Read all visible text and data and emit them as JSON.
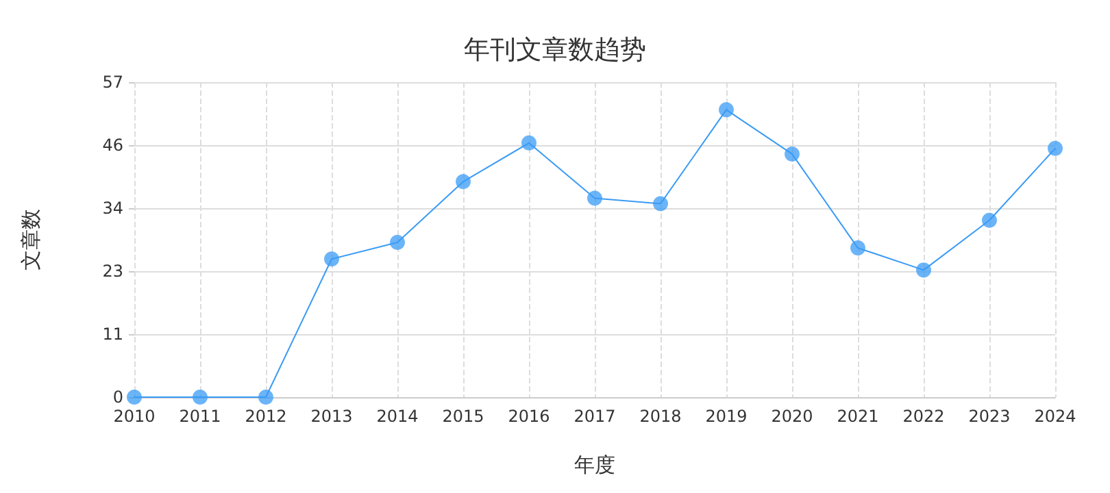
{
  "chart_data": {
    "type": "line",
    "title": "年刊文章数趋势",
    "xlabel": "年度",
    "ylabel": "文章数",
    "categories": [
      "2010",
      "2011",
      "2012",
      "2013",
      "2014",
      "2015",
      "2016",
      "2017",
      "2018",
      "2019",
      "2020",
      "2021",
      "2022",
      "2023",
      "2024"
    ],
    "series": [
      {
        "color": "#3a9bf5",
        "values": [
          0,
          0,
          0,
          25,
          28,
          39,
          46,
          36,
          35,
          52,
          44,
          27,
          23,
          32,
          45
        ]
      }
    ],
    "ylim": [
      0,
      57
    ],
    "yticks": [
      0,
      {
        "value": 11.4,
        "label": "11"
      },
      {
        "value": 22.8,
        "label": "23"
      },
      {
        "value": 34.2,
        "label": "34"
      },
      {
        "value": 45.6,
        "label": "46"
      },
      57
    ],
    "grid": true,
    "marker": "circle",
    "line_style": "solid"
  }
}
